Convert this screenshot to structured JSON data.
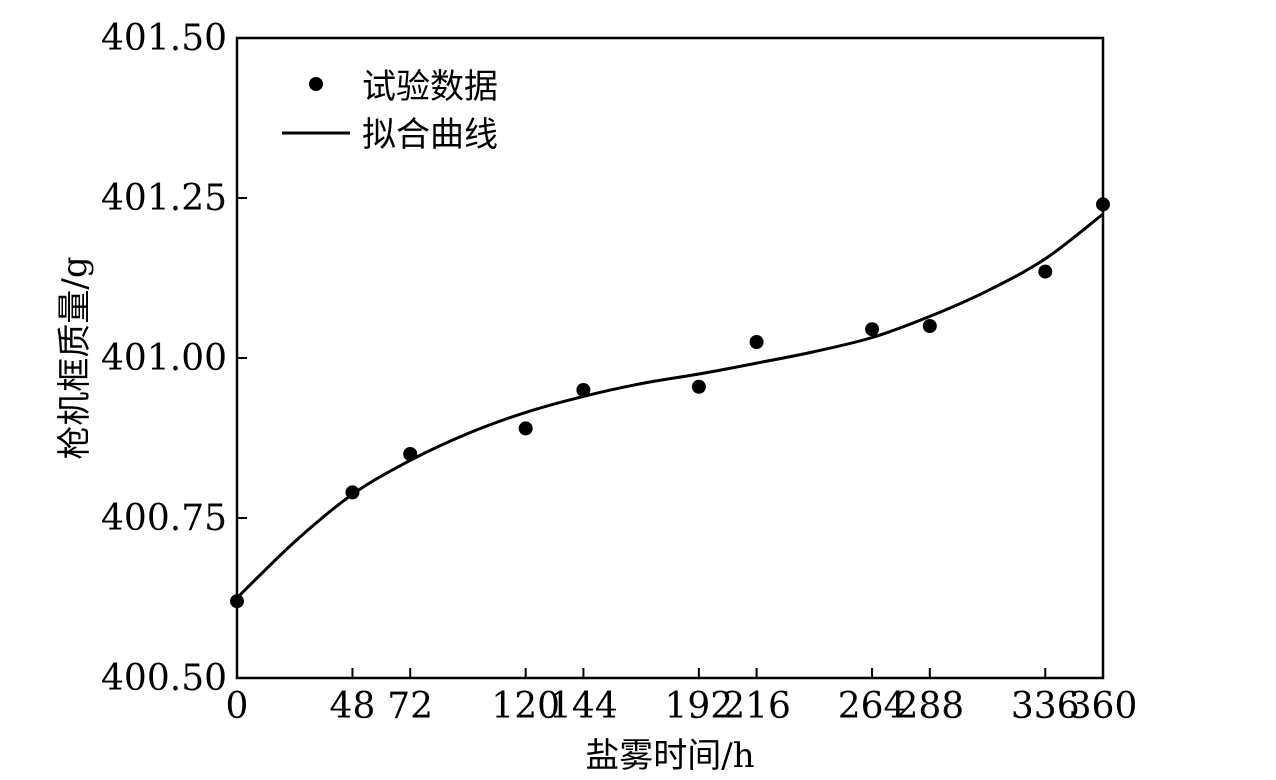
{
  "chart_data": {
    "type": "scatter",
    "xlabel": "盐雾时间/h",
    "ylabel": "枪机框质量/g",
    "xlim": [
      0,
      360
    ],
    "ylim": [
      400.5,
      401.5
    ],
    "x_ticks": [
      0,
      48,
      72,
      120,
      144,
      192,
      216,
      264,
      288,
      336,
      360
    ],
    "x_tick_labels": [
      "0",
      "48",
      "72",
      "120",
      "144",
      "192",
      "216",
      "264",
      "288",
      "336",
      "360"
    ],
    "y_ticks": [
      400.5,
      400.75,
      401.0,
      401.25,
      401.5
    ],
    "y_tick_labels": [
      "400.50",
      "400.75",
      "401.00",
      "401.25",
      "401.50"
    ],
    "grid": false,
    "legend_position": "top-left",
    "series": [
      {
        "name": "试验数据",
        "kind": "scatter",
        "x": [
          0,
          48,
          72,
          120,
          144,
          192,
          216,
          264,
          288,
          336,
          360
        ],
        "y": [
          400.62,
          400.79,
          400.85,
          400.89,
          400.95,
          400.955,
          401.025,
          401.045,
          401.05,
          401.135,
          401.24
        ]
      },
      {
        "name": "拟合曲线",
        "kind": "line",
        "x": [
          0,
          24,
          48,
          72,
          96,
          120,
          144,
          168,
          192,
          216,
          240,
          264,
          288,
          312,
          336,
          360
        ],
        "y": [
          400.625,
          400.713,
          400.787,
          400.84,
          400.882,
          400.915,
          400.94,
          400.96,
          400.975,
          400.992,
          401.01,
          401.032,
          401.065,
          401.105,
          401.155,
          401.225
        ]
      }
    ],
    "colors": {
      "axis": "#000000",
      "marker": "#000000",
      "line": "#000000"
    }
  }
}
